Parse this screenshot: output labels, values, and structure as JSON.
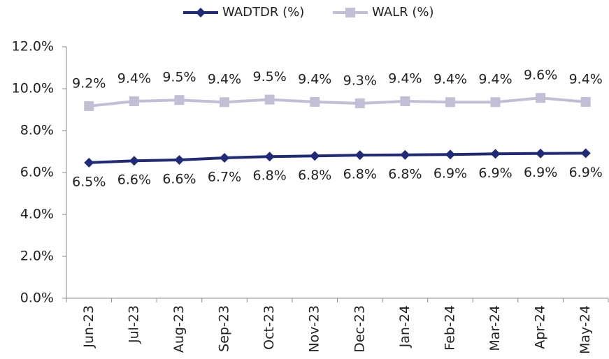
{
  "chart_data": {
    "type": "line",
    "categories": [
      "Jun-23",
      "Jul-23",
      "Aug-23",
      "Sep-23",
      "Oct-23",
      "Nov-23",
      "Dec-23",
      "Jan-24",
      "Feb-24",
      "Mar-24",
      "Apr-24",
      "May-24"
    ],
    "series": [
      {
        "name": "WADTDR (%)",
        "color": "#1f2a78",
        "marker": "diamond",
        "values": [
          6.47,
          6.56,
          6.6,
          6.7,
          6.76,
          6.79,
          6.83,
          6.84,
          6.86,
          6.89,
          6.91,
          6.92
        ],
        "value_labels": [
          "6.5%",
          "6.6%",
          "6.6%",
          "6.7%",
          "6.8%",
          "6.8%",
          "6.8%",
          "6.8%",
          "6.9%",
          "6.9%",
          "6.9%",
          "6.9%"
        ]
      },
      {
        "name": "WALR (%)",
        "color": "#c0bfd6",
        "marker": "square",
        "values": [
          9.17,
          9.4,
          9.46,
          9.36,
          9.48,
          9.37,
          9.3,
          9.4,
          9.36,
          9.36,
          9.56,
          9.37
        ],
        "value_labels": [
          "9.2%",
          "9.4%",
          "9.5%",
          "9.4%",
          "9.5%",
          "9.4%",
          "9.3%",
          "9.4%",
          "9.4%",
          "9.4%",
          "9.6%",
          "9.4%"
        ]
      }
    ],
    "ylim": [
      0,
      12
    ],
    "yticks": [
      {
        "value": 0,
        "label": "0.0%"
      },
      {
        "value": 2,
        "label": "2.0%"
      },
      {
        "value": 4,
        "label": "4.0%"
      },
      {
        "value": 6,
        "label": "6.0%"
      },
      {
        "value": 8,
        "label": "8.0%"
      },
      {
        "value": 10,
        "label": "10.0%"
      },
      {
        "value": 12,
        "label": "12.0%"
      }
    ],
    "legend": "top"
  }
}
